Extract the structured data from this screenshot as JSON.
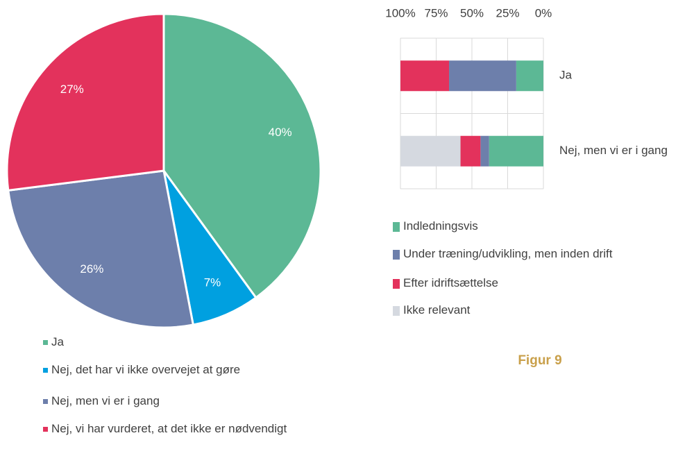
{
  "chart_data": [
    {
      "type": "pie",
      "categories": [
        "Ja",
        "Nej, det har vi ikke overvejet at gøre",
        "Nej, men vi er i gang",
        "Nej, vi har vurderet, at det ikke er nødvendigt"
      ],
      "values": [
        40,
        7,
        26,
        27
      ],
      "value_labels": [
        "40%",
        "7%",
        "26%",
        "27%"
      ],
      "colors": [
        "#5cb895",
        "#00a0e0",
        "#6d7fab",
        "#e3325c"
      ]
    },
    {
      "type": "bar",
      "orientation": "horizontal",
      "stacked": true,
      "categories": [
        "Ja",
        "Nej, men vi er i gang"
      ],
      "series": [
        {
          "name": "Indledningsvis",
          "color": "#5cb895",
          "values": [
            19,
            38
          ]
        },
        {
          "name": "Under træning/udvikling, men inden drift",
          "color": "#6d7fab",
          "values": [
            47,
            6
          ]
        },
        {
          "name": "Efter idriftsættelse",
          "color": "#e3325c",
          "values": [
            34,
            14
          ]
        },
        {
          "name": "Ikke relevant",
          "color": "#d5d9e0",
          "values": [
            0,
            42
          ]
        }
      ],
      "xlim": [
        100,
        0
      ],
      "xticks": [
        {
          "value": 100,
          "label": "100%"
        },
        {
          "value": 75,
          "label": "75%"
        },
        {
          "value": 50,
          "label": "50%"
        },
        {
          "value": 25,
          "label": "25%"
        },
        {
          "value": 0,
          "label": "0%"
        }
      ],
      "grid": true
    }
  ],
  "caption": "Figur 9"
}
